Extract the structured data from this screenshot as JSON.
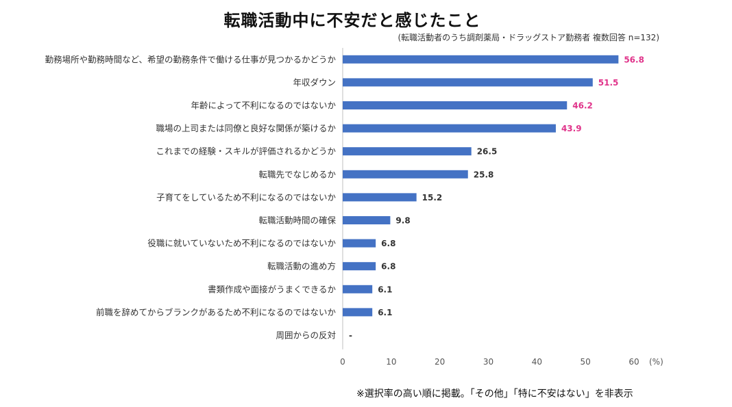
{
  "chart_data": {
    "type": "bar",
    "orientation": "horizontal",
    "title": "転職活動中に不安だと感じたこと",
    "subtitle": "(転職活動者のうち調剤薬局・ドラッグストア勤務者 複数回答 n=132)",
    "categories": [
      "勤務場所や勤務時間など、希望の勤務条件で働ける仕事が見つかるかどうか",
      "年収ダウン",
      "年齢によって不利になるのではないか",
      "職場の上司または同僚と良好な関係が築けるか",
      "これまでの経験・スキルが評価されるかどうか",
      "転職先でなじめるか",
      "子育てをしているため不利になるのではないか",
      "転職活動時間の確保",
      "役職に就いていないため不利になるのではないか",
      "転職活動の進め方",
      "書類作成や面接がうまくできるか",
      "前職を辞めてからブランクがあるため不利になるのではないか",
      "周囲からの反対"
    ],
    "values": [
      56.8,
      51.5,
      46.2,
      43.9,
      26.5,
      25.8,
      15.2,
      9.8,
      6.8,
      6.8,
      6.1,
      6.1,
      null
    ],
    "value_labels": [
      "56.8",
      "51.5",
      "46.2",
      "43.9",
      "26.5",
      "25.8",
      "15.2",
      "9.8",
      "6.8",
      "6.8",
      "6.1",
      "6.1",
      "-"
    ],
    "highlight_top_n": 4,
    "xlim": [
      0,
      60
    ],
    "xticks": [
      "0",
      "10",
      "20",
      "30",
      "40",
      "50",
      "60"
    ],
    "x_unit_label": "(%)",
    "xlabel": "",
    "ylabel": "",
    "bar_color": "#4472c4",
    "highlight_label_color": "#e0338a",
    "normal_label_color": "#333333",
    "grid": false
  },
  "footnote": "※選択率の高い順に掲載。「その他」「特に不安はない」を非表示"
}
